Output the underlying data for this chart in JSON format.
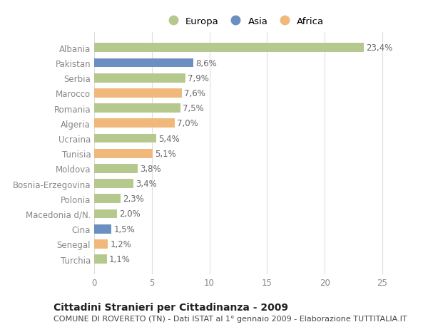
{
  "categories": [
    "Albania",
    "Pakistan",
    "Serbia",
    "Marocco",
    "Romania",
    "Algeria",
    "Ucraina",
    "Tunisia",
    "Moldova",
    "Bosnia-Erzegovina",
    "Polonia",
    "Macedonia d/N.",
    "Cina",
    "Senegal",
    "Turchia"
  ],
  "values": [
    23.4,
    8.6,
    7.9,
    7.6,
    7.5,
    7.0,
    5.4,
    5.1,
    3.8,
    3.4,
    2.3,
    2.0,
    1.5,
    1.2,
    1.1
  ],
  "labels": [
    "23,4%",
    "8,6%",
    "7,9%",
    "7,6%",
    "7,5%",
    "7,0%",
    "5,4%",
    "5,1%",
    "3,8%",
    "3,4%",
    "2,3%",
    "2,0%",
    "1,5%",
    "1,2%",
    "1,1%"
  ],
  "continents": [
    "Europa",
    "Asia",
    "Europa",
    "Africa",
    "Europa",
    "Africa",
    "Europa",
    "Africa",
    "Europa",
    "Europa",
    "Europa",
    "Europa",
    "Asia",
    "Africa",
    "Europa"
  ],
  "colors": {
    "Europa": "#b5c98e",
    "Asia": "#6a8fc0",
    "Africa": "#f0b87a"
  },
  "xlim": [
    0,
    26
  ],
  "xticks": [
    0,
    5,
    10,
    15,
    20,
    25
  ],
  "title": "Cittadini Stranieri per Cittadinanza - 2009",
  "subtitle": "COMUNE DI ROVERETO (TN) - Dati ISTAT al 1° gennaio 2009 - Elaborazione TUTTITALIA.IT",
  "background_color": "#ffffff",
  "grid_color": "#dddddd",
  "bar_height": 0.6,
  "label_fontsize": 8.5,
  "ytick_fontsize": 8.5,
  "xtick_fontsize": 8.5,
  "title_fontsize": 10,
  "subtitle_fontsize": 8
}
